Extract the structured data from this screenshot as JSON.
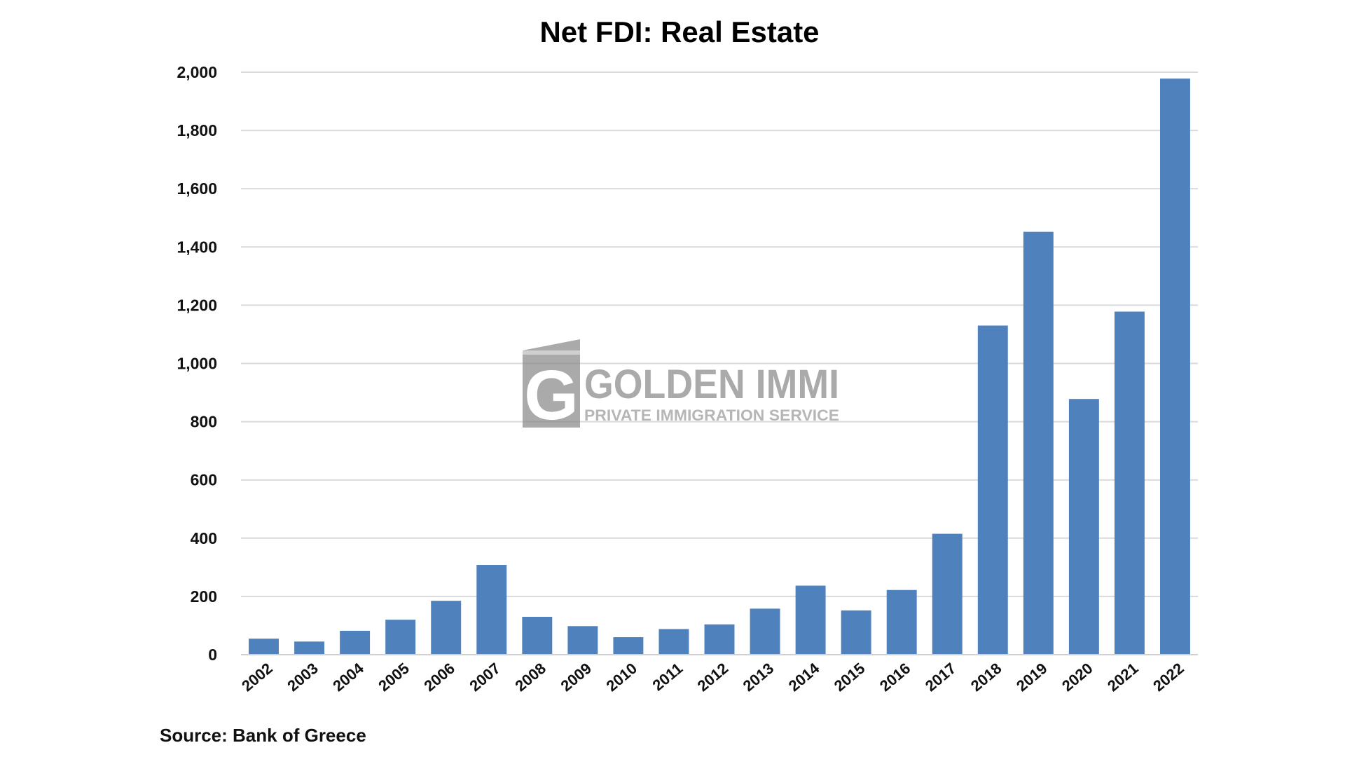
{
  "chart_data": {
    "type": "bar",
    "title": "Net FDI: Real Estate",
    "categories": [
      "2002",
      "2003",
      "2004",
      "2005",
      "2006",
      "2007",
      "2008",
      "2009",
      "2010",
      "2011",
      "2012",
      "2013",
      "2014",
      "2015",
      "2016",
      "2017",
      "2018",
      "2019",
      "2020",
      "2021",
      "2022"
    ],
    "values": [
      55,
      45,
      82,
      120,
      185,
      308,
      130,
      98,
      60,
      88,
      104,
      158,
      237,
      152,
      222,
      415,
      1130,
      1452,
      878,
      1178,
      1978
    ],
    "ylim": [
      0,
      2000
    ],
    "yticks": [
      "0",
      "200",
      "400",
      "600",
      "800",
      "1,000",
      "1,200",
      "1,400",
      "1,600",
      "1,800",
      "2,000"
    ],
    "grid": true,
    "bar_color": "#4f81bd",
    "source": "Source: Bank of Greece"
  },
  "watermark": {
    "logo_letter": "G",
    "brand": "GOLDEN IMMI",
    "tagline": "PRIVATE IMMIGRATION SERVICE"
  }
}
